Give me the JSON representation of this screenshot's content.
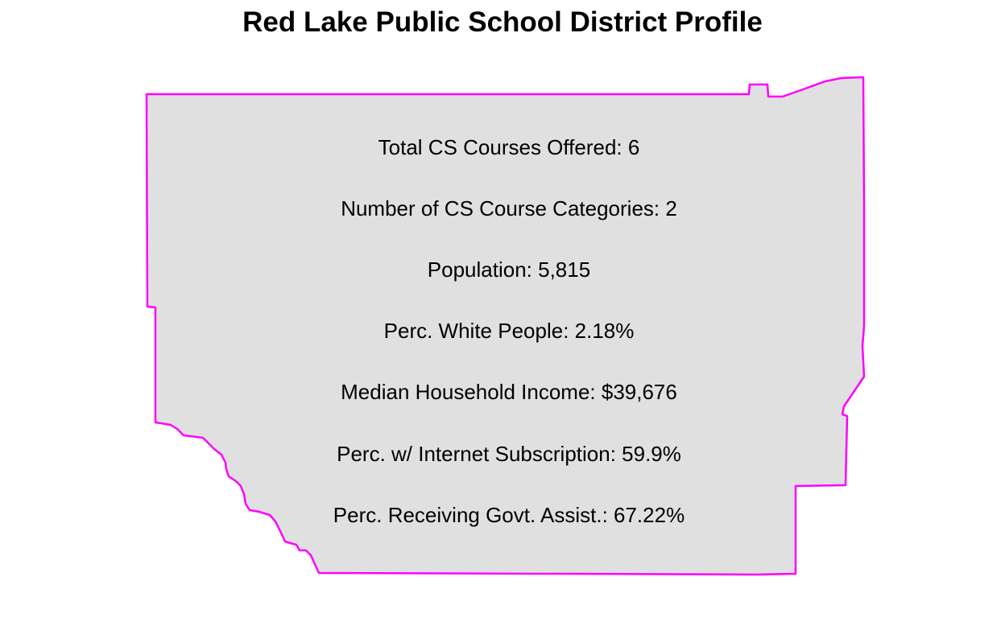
{
  "title": "Red Lake Public School District Profile",
  "colors": {
    "district_fill": "#e0e0e0",
    "district_outline": "#ff00ff",
    "text": "#000000",
    "background": "#ffffff"
  },
  "district": {
    "stats": [
      {
        "label": "Total CS Courses Offered",
        "value": "6",
        "text": "Total CS Courses Offered: 6"
      },
      {
        "label": "Number of CS Course Categories",
        "value": "2",
        "text": "Number of CS Course Categories: 2"
      },
      {
        "label": "Population",
        "value": "5,815",
        "text": "Population: 5,815"
      },
      {
        "label": "Perc. White People",
        "value": "2.18%",
        "text": "Perc. White People: 2.18%"
      },
      {
        "label": "Median Household Income",
        "value": "$39,676",
        "text": "Median Household Income: $39,676"
      },
      {
        "label": "Perc. w/ Internet Subscription",
        "value": "59.9%",
        "text": "Perc. w/ Internet Subscription: 59.9%"
      },
      {
        "label": "Perc. Receiving Govt. Assist.",
        "value": "67.22%",
        "text": "Perc. Receiving Govt. Assist.: 67.22%"
      }
    ]
  }
}
